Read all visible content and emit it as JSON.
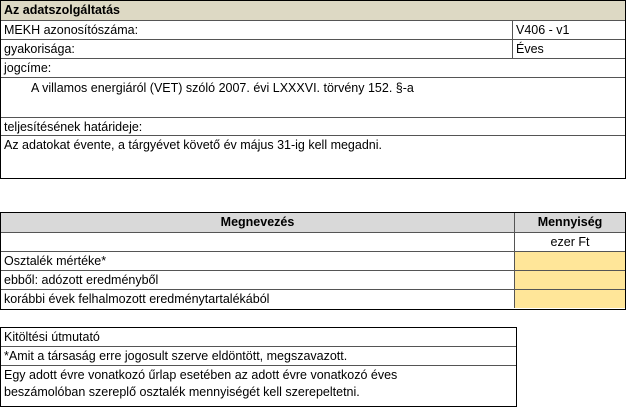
{
  "service": {
    "title": "Az adatszolgáltatás",
    "rows": [
      {
        "label": "MEKH azonosítószáma:",
        "value": "V406 - v1"
      },
      {
        "label": "gyakorisága:",
        "value": "Éves"
      }
    ],
    "legal_basis_label": "jogcíme:",
    "legal_basis": "A villamos energiáról (VET) szóló 2007. évi LXXXVI. törvény 152. §-a",
    "deadline_label": "teljesítésének határideje:",
    "deadline": "Az adatokat évente, a tárgyévet követő év május 31-ig kell megadni."
  },
  "table": {
    "headers": [
      "Megnevezés",
      "Mennyiség"
    ],
    "unit": "ezer Ft",
    "rows": [
      {
        "label": "Osztalék mértéke*",
        "value": ""
      },
      {
        "label": "ebből: adózott eredményből",
        "value": ""
      },
      {
        "label": "korábbi évek felhalmozott eredménytartalékából",
        "value": ""
      }
    ],
    "header_color": "#d9d9d9",
    "input_color": "#ffe699"
  },
  "guide": {
    "title": "Kitöltési útmutató",
    "note1": "*Amit a társaság erre jogosult szerve eldöntött, megszavazott.",
    "note2_line1": "Egy adott évre vonatkozó űrlap esetében az adott évre vonatkozó éves",
    "note2_line2": "beszámolóban szereplő osztalék mennyiségét kell szerepeltetni."
  }
}
